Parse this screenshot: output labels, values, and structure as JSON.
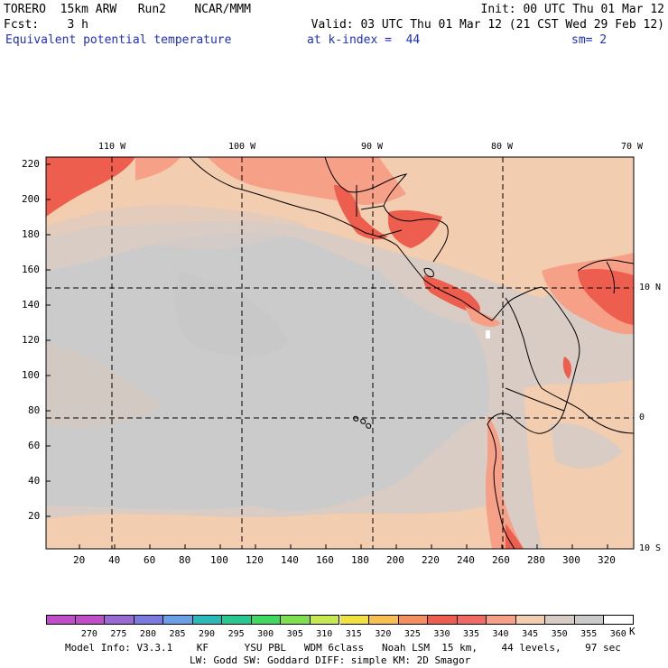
{
  "header": {
    "model_line": "TORERO  15km ARW   Run2    NCAR/MMM",
    "init": "Init: 00 UTC Thu 01 Mar 12",
    "fcst": "Fcst:    3 h",
    "valid": "Valid: 03 UTC Thu 01 Mar 12 (21 CST Wed 29 Feb 12)",
    "field_title": "Equivalent potential temperature",
    "level": "at k-index =  44",
    "smoothing": "sm= 2"
  },
  "map": {
    "longitude_labels_top": [
      "110 W",
      "100 W",
      "90 W",
      "80 W",
      "70 W"
    ],
    "latitude_labels_right": [
      "10 N",
      "0",
      "10 S"
    ],
    "y_ticks": [
      "220",
      "200",
      "180",
      "160",
      "140",
      "120",
      "100",
      "80",
      "60",
      "40",
      "20"
    ],
    "x_ticks": [
      "20",
      "40",
      "60",
      "80",
      "100",
      "120",
      "140",
      "160",
      "180",
      "200",
      "220",
      "240",
      "260",
      "280",
      "300",
      "320"
    ]
  },
  "colorbar": {
    "levels": [
      "270",
      "275",
      "280",
      "285",
      "290",
      "295",
      "300",
      "305",
      "310",
      "315",
      "320",
      "325",
      "330",
      "335",
      "340",
      "345",
      "350",
      "355",
      "360"
    ],
    "unit": "K",
    "colors": [
      "#c04ec8",
      "#9a6ad4",
      "#7a7ae0",
      "#6aa0e8",
      "#2ab8b8",
      "#28c890",
      "#40d860",
      "#7ee050",
      "#c8e850",
      "#f0e040",
      "#f8c050",
      "#f49060",
      "#ee5e4e",
      "#f26a64",
      "#f6a088",
      "#f2cdb0",
      "#d8ccc4",
      "#cbcbcb",
      "#ffffff"
    ]
  },
  "footer": {
    "line1": "Model Info: V3.3.1    KF      YSU PBL   WDM 6class   Noah LSM  15 km,    44 levels,    97 sec",
    "line2": "LW: Godd SW: Goddard DIFF: simple KM: 2D Smagor"
  }
}
